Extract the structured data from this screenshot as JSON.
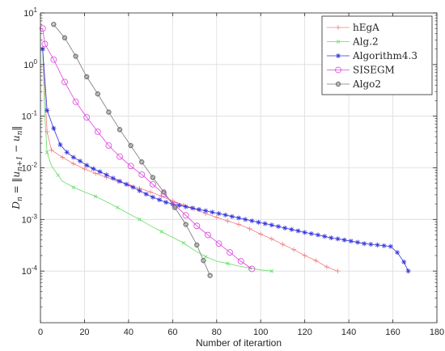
{
  "chart_data": {
    "type": "line",
    "title": "",
    "xlabel": "Number of iterartion",
    "ylabel": "D_n = ||u_{n+1} − u_n||",
    "ylabel_parts": {
      "main": "D",
      "main_sub": "n",
      "eq": " = ‖u",
      "u1_sub": "n+1",
      "minus": " − u",
      "u2_sub": "n",
      "close": "‖"
    },
    "xlim": [
      0,
      180
    ],
    "ylim_log10": [
      -5,
      1
    ],
    "yscale": "log",
    "grid": true,
    "legend_position": "top-right",
    "x_ticks": [
      "0",
      "20",
      "40",
      "60",
      "80",
      "100",
      "120",
      "140",
      "160",
      "180"
    ],
    "y_ticks": [
      {
        "base": "10",
        "exp": "1"
      },
      {
        "base": "10",
        "exp": "0"
      },
      {
        "base": "10",
        "exp": "-1"
      },
      {
        "base": "10",
        "exp": "-2"
      },
      {
        "base": "10",
        "exp": "-3"
      },
      {
        "base": "10",
        "exp": "-4"
      }
    ],
    "series": [
      {
        "name": "hEgA",
        "color": "#f08080",
        "marker": "plus",
        "x": [
          1,
          3,
          5,
          10,
          15,
          20,
          25,
          30,
          35,
          40,
          45,
          50,
          55,
          60,
          65,
          70,
          75,
          80,
          85,
          90,
          95,
          100,
          105,
          110,
          115,
          120,
          125,
          130,
          135
        ],
        "y": [
          2.0,
          0.05,
          0.022,
          0.016,
          0.012,
          0.0095,
          0.0078,
          0.0065,
          0.0055,
          0.0047,
          0.004,
          0.0034,
          0.0028,
          0.0023,
          0.0019,
          0.0016,
          0.0013,
          0.0011,
          0.00093,
          0.0008,
          0.00066,
          0.00052,
          0.00042,
          0.00033,
          0.00026,
          0.0002,
          0.00016,
          0.00012,
          0.0001
        ]
      },
      {
        "name": "Alg.2",
        "color": "#66dd66",
        "marker": "x",
        "x": [
          1,
          2,
          3,
          5,
          8,
          10,
          15,
          20,
          25,
          30,
          35,
          40,
          45,
          50,
          55,
          60,
          65,
          70,
          75,
          80,
          85,
          90,
          95,
          100,
          105
        ],
        "y": [
          2.0,
          0.1,
          0.02,
          0.011,
          0.0072,
          0.0055,
          0.0042,
          0.0034,
          0.0028,
          0.0022,
          0.0017,
          0.0013,
          0.001,
          0.00075,
          0.00058,
          0.00045,
          0.00035,
          0.00025,
          0.00019,
          0.000155,
          0.00014,
          0.000125,
          0.000115,
          0.000105,
          0.0001
        ]
      },
      {
        "name": "Algorithm4.3",
        "color": "#3333dd",
        "marker": "star",
        "x": [
          1,
          3,
          6,
          9,
          12,
          15,
          18,
          21,
          24,
          27,
          30,
          33,
          36,
          39,
          42,
          45,
          48,
          51,
          54,
          57,
          60,
          63,
          66,
          69,
          72,
          75,
          78,
          81,
          84,
          87,
          90,
          93,
          96,
          99,
          102,
          105,
          108,
          111,
          114,
          117,
          120,
          123,
          126,
          129,
          132,
          135,
          138,
          141,
          144,
          147,
          150,
          153,
          156,
          159,
          162,
          165,
          167
        ],
        "y": [
          2.0,
          0.13,
          0.058,
          0.028,
          0.02,
          0.016,
          0.0135,
          0.0112,
          0.0096,
          0.0084,
          0.0073,
          0.0063,
          0.0055,
          0.0048,
          0.0042,
          0.0036,
          0.0031,
          0.0027,
          0.0024,
          0.00215,
          0.002,
          0.00188,
          0.00176,
          0.00166,
          0.00156,
          0.00147,
          0.00138,
          0.0013,
          0.00122,
          0.00114,
          0.00107,
          0.001,
          0.00094,
          0.00088,
          0.00083,
          0.00078,
          0.00073,
          0.00068,
          0.00064,
          0.0006,
          0.00056,
          0.00053,
          0.0005,
          0.00047,
          0.00044,
          0.00042,
          0.0004,
          0.00038,
          0.00036,
          0.00034,
          0.00033,
          0.00032,
          0.00031,
          0.0003,
          0.00023,
          0.00015,
          0.0001
        ]
      },
      {
        "name": "SISEGM",
        "color": "#e040e0",
        "marker": "circle",
        "x": [
          1,
          2,
          6,
          11,
          16,
          21,
          26,
          31,
          36,
          41,
          46,
          51,
          56,
          61,
          66,
          71,
          76,
          81,
          86,
          91,
          96
        ],
        "y": [
          5.0,
          2.5,
          1.25,
          0.46,
          0.19,
          0.095,
          0.05,
          0.027,
          0.0165,
          0.0108,
          0.0074,
          0.0048,
          0.0031,
          0.0019,
          0.0012,
          0.00075,
          0.0005,
          0.00034,
          0.00023,
          0.000155,
          0.00011
        ]
      },
      {
        "name": "Algo2",
        "color": "#777777",
        "marker": "diamond-circle",
        "x": [
          6,
          11,
          16,
          21,
          26,
          31,
          36,
          41,
          46,
          51,
          56,
          61,
          66,
          71,
          74,
          77
        ],
        "y": [
          6.0,
          3.3,
          1.45,
          0.58,
          0.27,
          0.12,
          0.055,
          0.027,
          0.013,
          0.0065,
          0.0034,
          0.0017,
          0.0008,
          0.00032,
          0.00016,
          8.2e-05
        ]
      }
    ]
  }
}
